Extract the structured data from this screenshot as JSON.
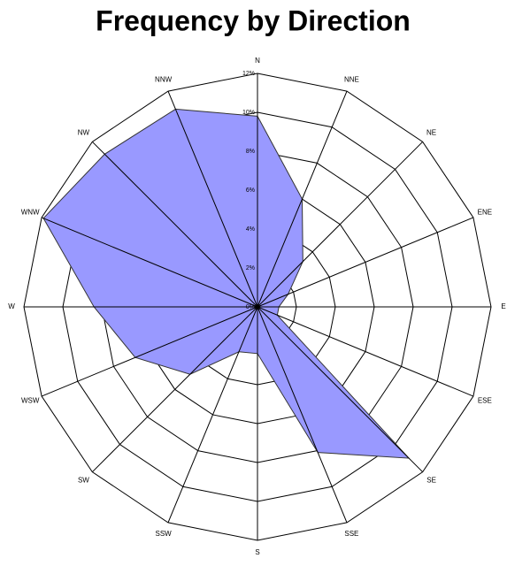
{
  "chart_data": {
    "type": "radar",
    "title": "Frequency by Direction",
    "categories": [
      "N",
      "NNE",
      "NE",
      "ENE",
      "E",
      "ESE",
      "SE",
      "SSE",
      "S",
      "SSW",
      "SW",
      "WSW",
      "W",
      "WNW",
      "NW",
      "NNW"
    ],
    "values": [
      9.8,
      6.0,
      3.3,
      1.7,
      1.1,
      1.1,
      11.0,
      8.1,
      2.4,
      2.5,
      4.9,
      6.8,
      8.4,
      11.9,
      11.1,
      11.0
    ],
    "color": "#9999ff",
    "ylim": [
      0,
      12
    ],
    "yticks": [
      {
        "value": 0,
        "label": "0%"
      },
      {
        "value": 2,
        "label": "2%"
      },
      {
        "value": 4,
        "label": "4%"
      },
      {
        "value": 6,
        "label": "6%"
      },
      {
        "value": 8,
        "label": "8%"
      },
      {
        "value": 10,
        "label": "10%"
      },
      {
        "value": 12,
        "label": "12%"
      }
    ],
    "grid": true
  }
}
